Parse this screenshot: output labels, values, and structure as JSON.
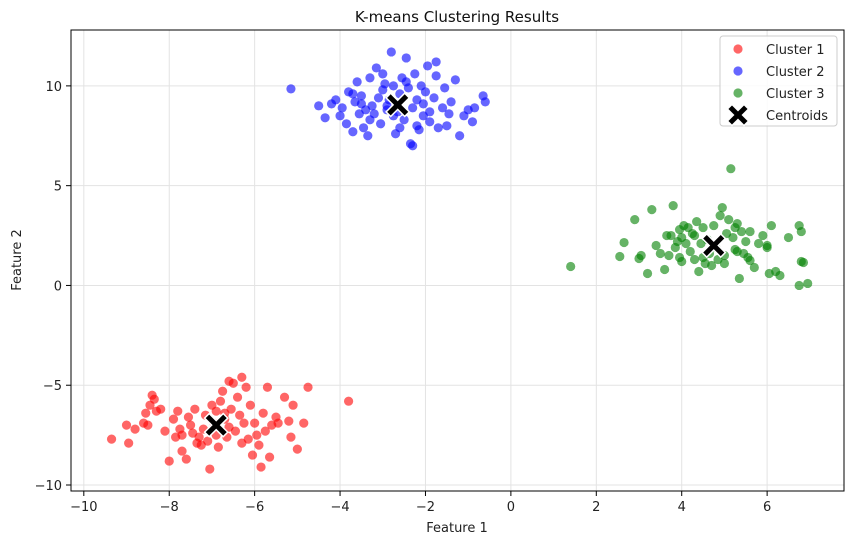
{
  "chart_data": {
    "type": "scatter",
    "title": "K-means Clustering Results",
    "xlabel": "Feature 1",
    "ylabel": "Feature 2",
    "xlim": [
      -10.3,
      7.8
    ],
    "ylim": [
      -10.3,
      12.8
    ],
    "xticks": [
      -10,
      -8,
      -6,
      -4,
      -2,
      0,
      2,
      4,
      6
    ],
    "yticks": [
      -10,
      -5,
      0,
      5,
      10
    ],
    "grid": true,
    "legend_position": "top-right",
    "series": [
      {
        "name": "Cluster 1",
        "color": "#ff0000",
        "marker": "circle",
        "points": [
          [
            -9.35,
            -7.7
          ],
          [
            -9.0,
            -7.0
          ],
          [
            -8.95,
            -7.9
          ],
          [
            -8.8,
            -7.2
          ],
          [
            -8.6,
            -6.9
          ],
          [
            -8.55,
            -6.4
          ],
          [
            -8.5,
            -7.0
          ],
          [
            -8.4,
            -5.5
          ],
          [
            -8.35,
            -5.7
          ],
          [
            -8.3,
            -6.3
          ],
          [
            -8.2,
            -6.2
          ],
          [
            -8.1,
            -7.3
          ],
          [
            -8.0,
            -8.8
          ],
          [
            -7.9,
            -6.7
          ],
          [
            -7.85,
            -7.6
          ],
          [
            -7.8,
            -6.3
          ],
          [
            -7.75,
            -7.2
          ],
          [
            -7.7,
            -8.3
          ],
          [
            -7.6,
            -8.7
          ],
          [
            -7.55,
            -6.6
          ],
          [
            -7.5,
            -7.0
          ],
          [
            -7.45,
            -7.4
          ],
          [
            -7.4,
            -6.2
          ],
          [
            -7.35,
            -7.9
          ],
          [
            -7.3,
            -7.6
          ],
          [
            -7.25,
            -8.0
          ],
          [
            -7.2,
            -7.2
          ],
          [
            -7.15,
            -6.5
          ],
          [
            -7.1,
            -7.8
          ],
          [
            -7.05,
            -9.2
          ],
          [
            -7.0,
            -6.0
          ],
          [
            -6.95,
            -6.9
          ],
          [
            -6.9,
            -7.5
          ],
          [
            -6.85,
            -8.1
          ],
          [
            -6.8,
            -5.8
          ],
          [
            -6.75,
            -5.3
          ],
          [
            -6.7,
            -6.7
          ],
          [
            -6.65,
            -7.6
          ],
          [
            -6.6,
            -7.1
          ],
          [
            -6.55,
            -6.2
          ],
          [
            -6.5,
            -4.9
          ],
          [
            -6.45,
            -7.3
          ],
          [
            -6.4,
            -5.6
          ],
          [
            -6.35,
            -6.5
          ],
          [
            -6.3,
            -7.9
          ],
          [
            -6.25,
            -6.9
          ],
          [
            -6.2,
            -5.1
          ],
          [
            -6.15,
            -7.7
          ],
          [
            -6.1,
            -6.0
          ],
          [
            -6.05,
            -8.5
          ],
          [
            -6.0,
            -6.9
          ],
          [
            -5.95,
            -7.5
          ],
          [
            -5.9,
            -8.0
          ],
          [
            -5.85,
            -9.1
          ],
          [
            -5.8,
            -6.4
          ],
          [
            -5.75,
            -7.3
          ],
          [
            -5.7,
            -5.1
          ],
          [
            -5.65,
            -8.6
          ],
          [
            -5.6,
            -7.0
          ],
          [
            -5.5,
            -6.6
          ],
          [
            -5.45,
            -6.9
          ],
          [
            -5.3,
            -5.6
          ],
          [
            -5.2,
            -6.8
          ],
          [
            -5.15,
            -7.6
          ],
          [
            -5.1,
            -6.0
          ],
          [
            -5.0,
            -8.2
          ],
          [
            -4.85,
            -6.9
          ],
          [
            -4.75,
            -5.1
          ],
          [
            -3.8,
            -5.8
          ],
          [
            -6.6,
            -4.8
          ],
          [
            -6.3,
            -4.6
          ],
          [
            -7.7,
            -7.5
          ],
          [
            -6.9,
            -6.3
          ],
          [
            -8.45,
            -6.0
          ],
          [
            -6.7,
            -6.4
          ]
        ]
      },
      {
        "name": "Cluster 2",
        "color": "#0000ff",
        "marker": "circle",
        "points": [
          [
            -5.15,
            9.85
          ],
          [
            -4.5,
            9.0
          ],
          [
            -4.35,
            8.4
          ],
          [
            -4.2,
            9.1
          ],
          [
            -4.1,
            9.3
          ],
          [
            -4.0,
            8.5
          ],
          [
            -3.95,
            8.9
          ],
          [
            -3.85,
            8.1
          ],
          [
            -3.8,
            9.7
          ],
          [
            -3.7,
            7.7
          ],
          [
            -3.65,
            9.2
          ],
          [
            -3.6,
            10.2
          ],
          [
            -3.55,
            8.6
          ],
          [
            -3.5,
            9.5
          ],
          [
            -3.45,
            7.9
          ],
          [
            -3.4,
            8.8
          ],
          [
            -3.35,
            7.5
          ],
          [
            -3.3,
            10.4
          ],
          [
            -3.25,
            9.0
          ],
          [
            -3.2,
            8.6
          ],
          [
            -3.15,
            10.9
          ],
          [
            -3.1,
            9.4
          ],
          [
            -3.05,
            8.1
          ],
          [
            -3.0,
            9.8
          ],
          [
            -2.95,
            10.1
          ],
          [
            -2.9,
            8.8
          ],
          [
            -2.85,
            9.3
          ],
          [
            -2.8,
            11.7
          ],
          [
            -2.75,
            10.0
          ],
          [
            -2.7,
            7.6
          ],
          [
            -2.65,
            8.7
          ],
          [
            -2.6,
            9.6
          ],
          [
            -2.55,
            10.4
          ],
          [
            -2.5,
            8.3
          ],
          [
            -2.45,
            11.4
          ],
          [
            -2.4,
            9.9
          ],
          [
            -2.35,
            7.1
          ],
          [
            -2.3,
            8.9
          ],
          [
            -2.25,
            10.6
          ],
          [
            -2.2,
            9.3
          ],
          [
            -2.15,
            7.8
          ],
          [
            -2.1,
            10.0
          ],
          [
            -2.05,
            8.5
          ],
          [
            -2.0,
            9.7
          ],
          [
            -1.95,
            11.0
          ],
          [
            -1.9,
            8.2
          ],
          [
            -1.8,
            9.4
          ],
          [
            -1.75,
            10.5
          ],
          [
            -1.7,
            7.9
          ],
          [
            -1.6,
            8.9
          ],
          [
            -1.55,
            9.9
          ],
          [
            -1.5,
            8.0
          ],
          [
            -1.4,
            9.2
          ],
          [
            -1.3,
            10.3
          ],
          [
            -1.2,
            7.5
          ],
          [
            -1.0,
            8.8
          ],
          [
            -0.9,
            8.2
          ],
          [
            -0.85,
            8.9
          ],
          [
            -0.65,
            9.5
          ],
          [
            -0.6,
            9.2
          ],
          [
            -1.75,
            11.2
          ],
          [
            -2.3,
            7.0
          ],
          [
            -3.7,
            9.6
          ],
          [
            -2.2,
            8.0
          ],
          [
            -1.1,
            8.5
          ],
          [
            -2.9,
            9.0
          ],
          [
            -3.3,
            8.3
          ],
          [
            -2.45,
            10.2
          ],
          [
            -1.9,
            8.7
          ],
          [
            -2.6,
            7.9
          ],
          [
            -3.5,
            9.1
          ],
          [
            -2.05,
            9.1
          ],
          [
            -1.45,
            8.6
          ],
          [
            -2.75,
            8.5
          ],
          [
            -3.0,
            10.6
          ]
        ]
      },
      {
        "name": "Cluster 3",
        "color": "#008000",
        "marker": "circle",
        "points": [
          [
            1.4,
            0.95
          ],
          [
            2.55,
            1.45
          ],
          [
            2.65,
            2.15
          ],
          [
            2.9,
            3.3
          ],
          [
            3.0,
            1.35
          ],
          [
            3.05,
            1.5
          ],
          [
            3.2,
            0.6
          ],
          [
            3.3,
            3.8
          ],
          [
            3.4,
            2.0
          ],
          [
            3.5,
            1.6
          ],
          [
            3.6,
            0.8
          ],
          [
            3.65,
            2.5
          ],
          [
            3.7,
            1.5
          ],
          [
            3.75,
            2.5
          ],
          [
            3.8,
            4.0
          ],
          [
            3.85,
            1.9
          ],
          [
            3.9,
            2.2
          ],
          [
            3.95,
            2.8
          ],
          [
            4.0,
            1.2
          ],
          [
            4.05,
            3.0
          ],
          [
            4.1,
            2.1
          ],
          [
            4.15,
            2.9
          ],
          [
            4.2,
            1.7
          ],
          [
            4.25,
            2.6
          ],
          [
            4.3,
            1.3
          ],
          [
            4.35,
            3.2
          ],
          [
            4.4,
            0.7
          ],
          [
            4.45,
            2.1
          ],
          [
            4.5,
            2.9
          ],
          [
            4.55,
            1.1
          ],
          [
            4.6,
            2.3
          ],
          [
            4.65,
            1.6
          ],
          [
            4.7,
            1.0
          ],
          [
            4.75,
            3.0
          ],
          [
            4.8,
            1.9
          ],
          [
            4.85,
            1.3
          ],
          [
            4.9,
            3.5
          ],
          [
            4.95,
            3.9
          ],
          [
            5.0,
            1.1
          ],
          [
            5.05,
            2.6
          ],
          [
            5.1,
            3.3
          ],
          [
            5.15,
            5.85
          ],
          [
            5.2,
            2.4
          ],
          [
            5.25,
            1.8
          ],
          [
            5.3,
            3.1
          ],
          [
            5.35,
            0.35
          ],
          [
            5.4,
            2.7
          ],
          [
            5.45,
            1.6
          ],
          [
            5.5,
            2.2
          ],
          [
            5.55,
            1.4
          ],
          [
            5.6,
            2.7
          ],
          [
            5.7,
            0.9
          ],
          [
            5.8,
            2.1
          ],
          [
            5.9,
            2.5
          ],
          [
            6.0,
            2.0
          ],
          [
            6.05,
            0.6
          ],
          [
            6.1,
            3.0
          ],
          [
            6.2,
            0.7
          ],
          [
            6.3,
            0.5
          ],
          [
            6.5,
            2.4
          ],
          [
            6.75,
            3.0
          ],
          [
            6.8,
            2.7
          ],
          [
            6.8,
            1.2
          ],
          [
            6.85,
            1.15
          ],
          [
            6.75,
            0.0
          ],
          [
            6.95,
            0.1
          ],
          [
            4.0,
            2.4
          ],
          [
            5.0,
            1.5
          ],
          [
            4.5,
            1.4
          ],
          [
            5.3,
            1.7
          ],
          [
            4.3,
            2.5
          ],
          [
            5.6,
            1.25
          ],
          [
            3.95,
            1.4
          ],
          [
            6.0,
            1.9
          ],
          [
            5.25,
            2.9
          ]
        ]
      },
      {
        "name": "Centroids",
        "color": "#000000",
        "marker": "x",
        "points": [
          [
            -6.9,
            -7.0
          ],
          [
            -2.65,
            9.05
          ],
          [
            4.75,
            2.0
          ]
        ]
      }
    ]
  }
}
